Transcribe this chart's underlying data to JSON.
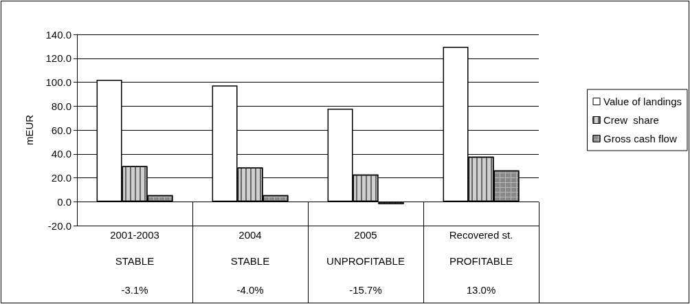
{
  "chart_data": {
    "type": "bar",
    "ylabel": "mEUR",
    "categories": [
      "2001-2003",
      "2004",
      "2005",
      "Recovered st."
    ],
    "series": [
      {
        "name": "Value of landings",
        "color": "#ffffff",
        "values": [
          102,
          97.3,
          77.8,
          129.6
        ]
      },
      {
        "name": "Crew  share",
        "color": "#d0d0d0",
        "values": [
          29.8,
          28.7,
          22.8,
          37.7
        ]
      },
      {
        "name": "Gross cash flow",
        "color": "#b8b8b8",
        "values": [
          5.5,
          5.5,
          -2.1,
          26.2
        ]
      }
    ],
    "ylim": [
      -20,
      140
    ],
    "yticks": [
      {
        "value": -20,
        "label": "-20.0"
      },
      {
        "value": 0,
        "label": "0.0"
      },
      {
        "value": 20,
        "label": "20.0"
      },
      {
        "value": 40,
        "label": "40.0"
      },
      {
        "value": 60,
        "label": "60.0"
      },
      {
        "value": 80,
        "label": "80.0"
      },
      {
        "value": 100,
        "label": "100.0"
      },
      {
        "value": 120,
        "label": "120.0"
      },
      {
        "value": 140,
        "label": "140.0"
      }
    ],
    "annotations": [
      "STABLE",
      "STABLE",
      "UNPROFITABLE",
      "PROFITABLE",
      "-3.1%",
      "-4.0%",
      "-15.7%",
      "13.0%"
    ],
    "grid": "y",
    "legend": "right"
  }
}
